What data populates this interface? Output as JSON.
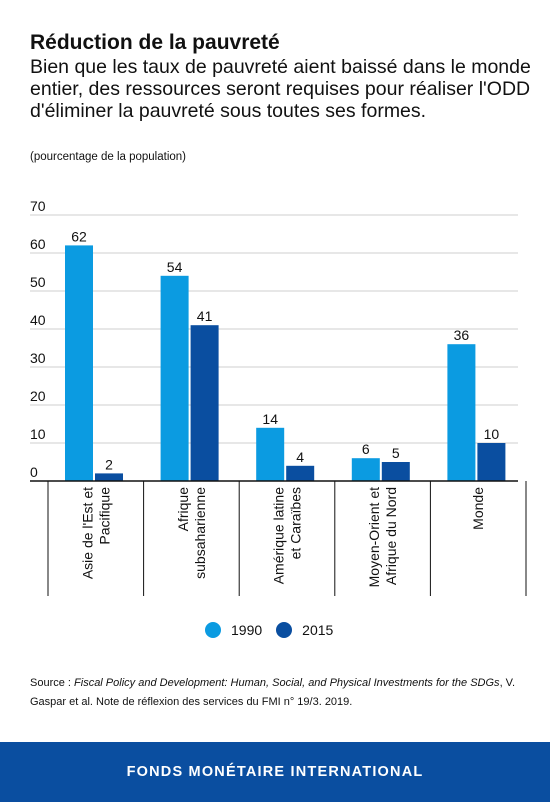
{
  "title": "Réduction de la pauvreté",
  "subtitle": "Bien que les taux de pauvreté aient baissé dans le monde entier, des ressources seront requises pour réaliser l'ODD d'éliminer la pauvreté sous toutes ses formes.",
  "unit_note": "(pourcentage de la population)",
  "chart_data": {
    "type": "bar",
    "categories": [
      [
        "Asie de l'Est et",
        "Pacifique"
      ],
      [
        "Afrique",
        "subsaharienne"
      ],
      [
        "Amérique latine",
        "et Caraïbes"
      ],
      [
        "Moyen-Orient et",
        "Afrique du Nord"
      ],
      [
        "Monde"
      ]
    ],
    "series": [
      {
        "name": "1990",
        "values": [
          62,
          54,
          14,
          6,
          36
        ],
        "color": "#0b9be1"
      },
      {
        "name": "2015",
        "values": [
          2,
          41,
          4,
          5,
          10
        ],
        "color": "#0a4ea0"
      }
    ],
    "ylim": [
      0,
      70
    ],
    "yticks": [
      "0",
      "10",
      "20",
      "30",
      "40",
      "50",
      "60",
      "70"
    ],
    "grid": true,
    "legend_position": "bottom-center"
  },
  "legend": {
    "label_1990": "1990",
    "label_2015": "2015"
  },
  "source": {
    "prefix": "Source : ",
    "italic": "Fiscal Policy and Development: Human, Social, and Physical Investments for the SDGs",
    "rest": ", V. Gaspar et al. Note de réflexion des services du FMI n° 19/3. 2019."
  },
  "footer": {
    "text": "FONDS MONÉTAIRE INTERNATIONAL",
    "background": "#0a4ea0"
  }
}
